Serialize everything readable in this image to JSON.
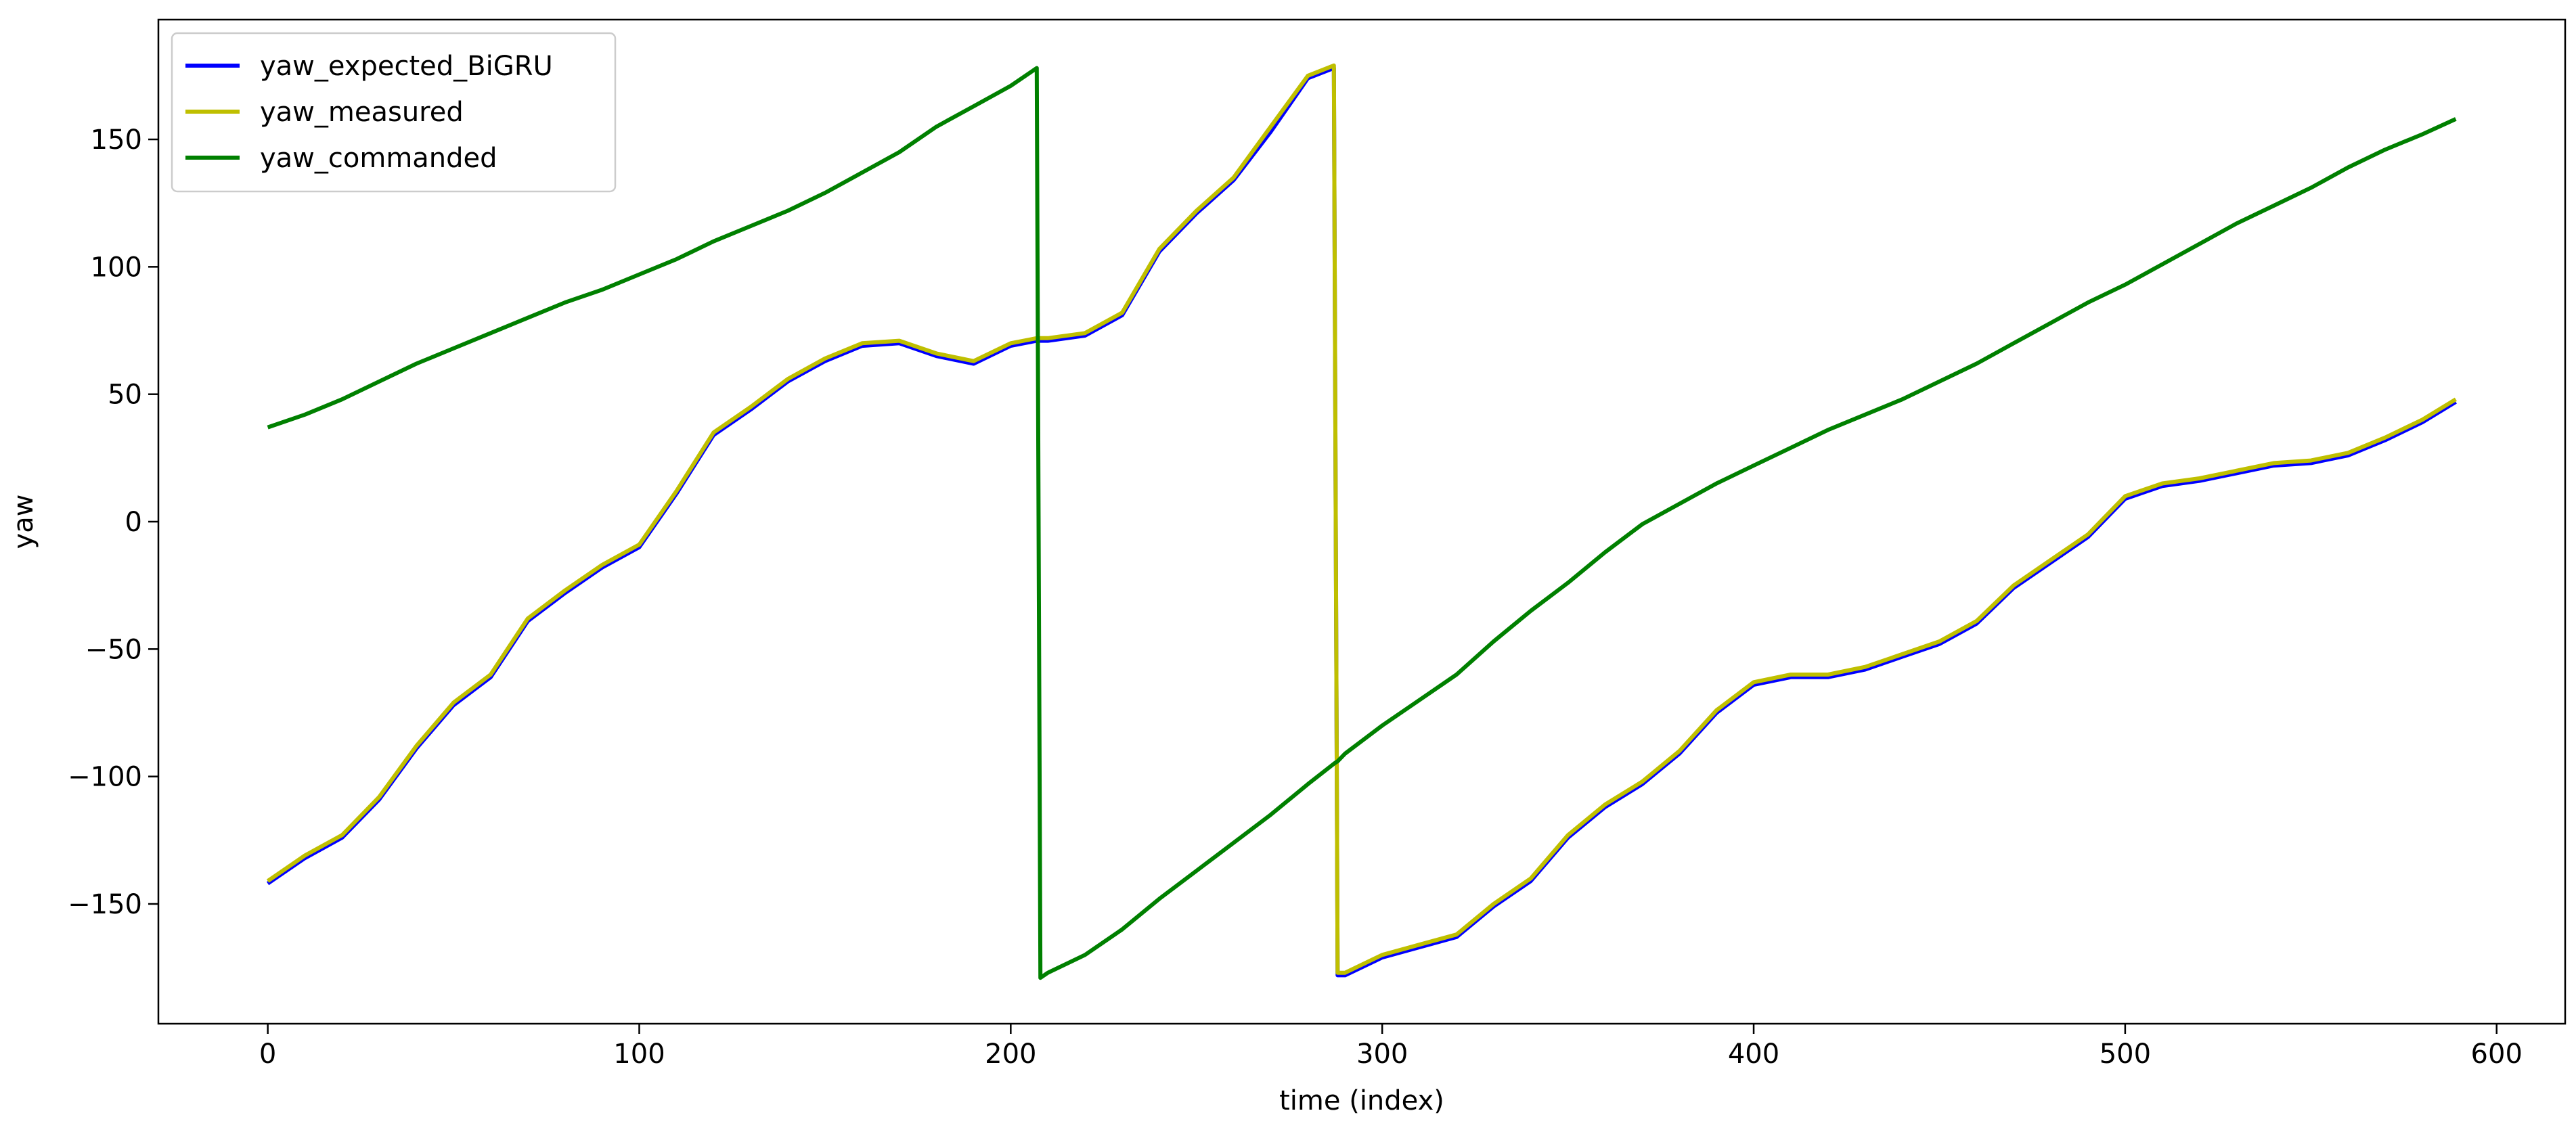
{
  "chart_data": {
    "type": "line",
    "xlabel": "time (index)",
    "ylabel": "yaw",
    "x": [
      0,
      10,
      20,
      30,
      40,
      50,
      60,
      70,
      80,
      90,
      100,
      110,
      120,
      130,
      140,
      150,
      160,
      170,
      180,
      190,
      200,
      207,
      208,
      210,
      220,
      230,
      240,
      250,
      260,
      270,
      280,
      287,
      288,
      290,
      300,
      310,
      320,
      330,
      340,
      350,
      360,
      370,
      380,
      390,
      400,
      410,
      420,
      430,
      440,
      450,
      460,
      470,
      480,
      490,
      500,
      510,
      520,
      530,
      540,
      550,
      560,
      570,
      580,
      589
    ],
    "series": [
      {
        "name": "yaw_expected_BiGRU",
        "color": "#0000ff",
        "values": [
          -142,
          -132,
          -124,
          -109,
          -89,
          -72,
          -61,
          -39,
          -28,
          -18,
          -10,
          11,
          34,
          44,
          55,
          63,
          69,
          70,
          65,
          62,
          69,
          71,
          71,
          71,
          73,
          81,
          106,
          121,
          134,
          153,
          174,
          178,
          -178,
          -178,
          -171,
          -167,
          -163,
          -151,
          -141,
          -124,
          -112,
          -103,
          -91,
          -75,
          -64,
          -61,
          -61,
          -58,
          -53,
          -48,
          -40,
          -26,
          -16,
          -6,
          9,
          14,
          16,
          19,
          22,
          23,
          26,
          32,
          39,
          47
        ]
      },
      {
        "name": "yaw_measured",
        "color": "#bfbf00",
        "values": [
          -141,
          -131,
          -123,
          -108,
          -88,
          -71,
          -60,
          -38,
          -27,
          -17,
          -9,
          12,
          35,
          45,
          56,
          64,
          70,
          71,
          66,
          63,
          70,
          72,
          72,
          72,
          74,
          82,
          107,
          122,
          135,
          155,
          175,
          179,
          -177,
          -177,
          -170,
          -166,
          -162,
          -150,
          -140,
          -123,
          -111,
          -102,
          -90,
          -74,
          -63,
          -60,
          -60,
          -57,
          -52,
          -47,
          -39,
          -25,
          -15,
          -5,
          10,
          15,
          17,
          20,
          23,
          24,
          27,
          33,
          40,
          48
        ]
      },
      {
        "name": "yaw_commanded",
        "color": "#008000",
        "values": [
          37,
          42,
          48,
          55,
          62,
          68,
          74,
          80,
          86,
          91,
          97,
          103,
          110,
          116,
          122,
          129,
          137,
          145,
          155,
          163,
          171,
          178,
          -179,
          -177,
          -170,
          -160,
          -148,
          -137,
          -126,
          -115,
          -103,
          -95,
          -94,
          -91,
          -80,
          -70,
          -60,
          -47,
          -35,
          -24,
          -12,
          -1,
          7,
          15,
          22,
          29,
          36,
          42,
          48,
          55,
          62,
          70,
          78,
          86,
          93,
          101,
          109,
          117,
          124,
          131,
          139,
          146,
          152,
          158
        ]
      }
    ],
    "xlim": [
      -29.45,
      618.45
    ],
    "xticks": [
      0,
      100,
      200,
      300,
      400,
      500,
      600
    ],
    "ylim": [
      -197,
      197
    ],
    "yticks": [
      {
        "value": -150,
        "label": "−150"
      },
      {
        "value": -100,
        "label": "−100"
      },
      {
        "value": -50,
        "label": "−50"
      },
      0,
      50,
      100,
      150
    ],
    "legend": "upper left",
    "grid": false
  }
}
